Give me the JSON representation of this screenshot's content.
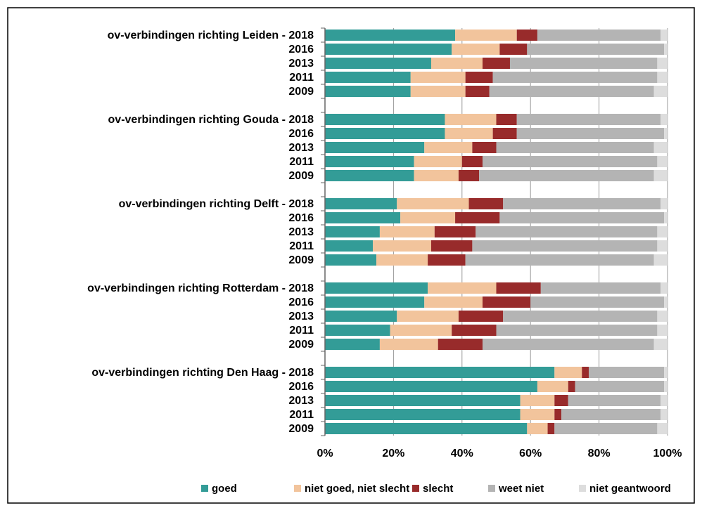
{
  "chart_data": {
    "type": "stacked-barh",
    "categories": [
      "ov-verbindingen richting Leiden - 2018",
      "2016",
      "2013",
      "2011",
      "2009",
      null,
      "ov-verbindingen richting Gouda - 2018",
      "2016",
      "2013",
      "2011",
      "2009",
      null,
      "ov-verbindingen richting Delft - 2018",
      "2016",
      "2013",
      "2011",
      "2009",
      null,
      "ov-verbindingen richting Rotterdam - 2018",
      "2016",
      "2013",
      "2011",
      "2009",
      null,
      "ov-verbindingen richting Den Haag - 2018",
      "2016",
      "2013",
      "2011",
      "2009"
    ],
    "series": [
      {
        "name": "goed",
        "color": "#339c97",
        "values": [
          38,
          37,
          31,
          25,
          25,
          null,
          35,
          35,
          29,
          26,
          26,
          null,
          21,
          22,
          16,
          14,
          15,
          null,
          30,
          29,
          21,
          19,
          16,
          null,
          67,
          62,
          57,
          57,
          59
        ]
      },
      {
        "name": "niet goed, niet slecht",
        "color": "#f2c49c",
        "values": [
          18,
          14,
          15,
          16,
          16,
          null,
          15,
          14,
          14,
          14,
          13,
          null,
          21,
          16,
          16,
          17,
          15,
          null,
          20,
          17,
          18,
          18,
          17,
          null,
          8,
          9,
          10,
          10,
          6
        ]
      },
      {
        "name": "slecht",
        "color": "#982b2b",
        "values": [
          6,
          8,
          8,
          8,
          7,
          null,
          6,
          7,
          7,
          6,
          6,
          null,
          10,
          13,
          12,
          12,
          11,
          null,
          13,
          14,
          13,
          13,
          13,
          null,
          2,
          2,
          4,
          2,
          2
        ]
      },
      {
        "name": "weet niet",
        "color": "#b4b4b4",
        "values": [
          36,
          40,
          43,
          48,
          48,
          null,
          42,
          43,
          46,
          51,
          51,
          null,
          46,
          48,
          53,
          54,
          55,
          null,
          35,
          39,
          45,
          47,
          50,
          null,
          22,
          26,
          27,
          29,
          30
        ]
      },
      {
        "name": "niet geantwoord",
        "color": "#dddddd",
        "values": [
          2,
          1,
          3,
          3,
          4,
          null,
          2,
          1,
          4,
          3,
          4,
          null,
          2,
          1,
          3,
          3,
          4,
          null,
          2,
          1,
          3,
          3,
          4,
          null,
          1,
          1,
          2,
          2,
          3
        ]
      }
    ],
    "xlim": [
      0,
      100
    ],
    "xticks": [
      {
        "value": 0,
        "label": "0%"
      },
      {
        "value": 20,
        "label": "20%"
      },
      {
        "value": 40,
        "label": "40%"
      },
      {
        "value": 60,
        "label": "60%"
      },
      {
        "value": 80,
        "label": "80%"
      },
      {
        "value": 100,
        "label": "100%"
      }
    ],
    "grid": true,
    "legend": "bottom"
  }
}
